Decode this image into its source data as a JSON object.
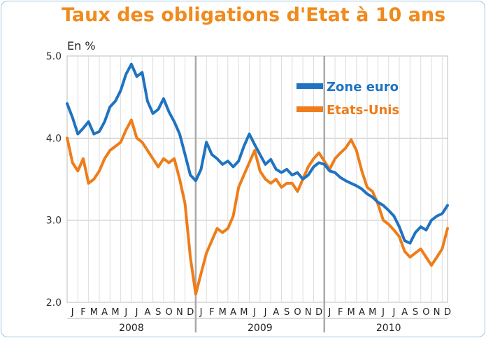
{
  "title": "Taux des obligations d'Etat à 10 ans",
  "unit_label": "En %",
  "colors": {
    "zone_euro": "#1f73c1",
    "etats_unis": "#ee7d1a",
    "title": "#f08a1d",
    "grid": "#bcbcbc"
  },
  "chart_data": {
    "type": "line",
    "title": "Taux des obligations d'Etat à 10 ans",
    "ylabel": "En %",
    "ylim": [
      2.0,
      5.0
    ],
    "yticks": [
      "2.0",
      "3.0",
      "4.0",
      "5.0"
    ],
    "x_unit": "month index (0 = janvier 2008)",
    "xlim": [
      0,
      35.5
    ],
    "month_labels": [
      "J",
      "F",
      "M",
      "A",
      "M",
      "J",
      "J",
      "A",
      "S",
      "O",
      "N",
      "D",
      "J",
      "F",
      "M",
      "A",
      "M",
      "J",
      "J",
      "A",
      "S",
      "O",
      "N",
      "D",
      "J",
      "F",
      "M",
      "A",
      "M",
      "J",
      "J",
      "A",
      "S",
      "O",
      "N",
      "D"
    ],
    "years": [
      "2008",
      "2009",
      "2010"
    ],
    "grid": true,
    "legend_position": "top-right",
    "series": [
      {
        "name": "Zone euro",
        "color": "#1f73c1",
        "x": [
          0,
          0.5,
          1,
          1.5,
          2,
          2.5,
          3,
          3.5,
          4,
          4.5,
          5,
          5.5,
          6,
          6.5,
          7,
          7.5,
          8,
          8.5,
          9,
          9.5,
          10,
          10.5,
          11,
          11.5,
          12,
          12.5,
          13,
          13.5,
          14,
          14.5,
          15,
          15.5,
          16,
          16.5,
          17,
          17.5,
          18,
          18.5,
          19,
          19.5,
          20,
          20.5,
          21,
          21.5,
          22,
          22.5,
          23,
          23.5,
          24,
          24.5,
          25,
          25.5,
          26,
          26.5,
          27,
          27.5,
          28,
          28.5,
          29,
          29.5,
          30,
          30.5,
          31,
          31.5,
          32,
          32.5,
          33,
          33.5,
          34,
          34.5,
          35,
          35.5
        ],
        "values": [
          4.42,
          4.25,
          4.05,
          4.12,
          4.2,
          4.05,
          4.08,
          4.2,
          4.38,
          4.45,
          4.58,
          4.78,
          4.9,
          4.75,
          4.8,
          4.45,
          4.3,
          4.35,
          4.48,
          4.32,
          4.2,
          4.05,
          3.8,
          3.55,
          3.48,
          3.62,
          3.95,
          3.8,
          3.75,
          3.68,
          3.72,
          3.65,
          3.72,
          3.9,
          4.05,
          3.92,
          3.8,
          3.68,
          3.74,
          3.62,
          3.58,
          3.62,
          3.55,
          3.58,
          3.5,
          3.55,
          3.65,
          3.7,
          3.68,
          3.6,
          3.58,
          3.52,
          3.48,
          3.45,
          3.42,
          3.38,
          3.32,
          3.28,
          3.22,
          3.18,
          3.12,
          3.05,
          2.92,
          2.75,
          2.72,
          2.85,
          2.92,
          2.88,
          3.0,
          3.05,
          3.08,
          3.18
        ]
      },
      {
        "name": "Etats-Unis",
        "color": "#ee7d1a",
        "x": [
          0,
          0.5,
          1,
          1.5,
          2,
          2.5,
          3,
          3.5,
          4,
          4.5,
          5,
          5.5,
          6,
          6.5,
          7,
          7.5,
          8,
          8.5,
          9,
          9.5,
          10,
          10.5,
          11,
          11.5,
          12,
          12.5,
          13,
          13.5,
          14,
          14.5,
          15,
          15.5,
          16,
          16.5,
          17,
          17.5,
          18,
          18.5,
          19,
          19.5,
          20,
          20.5,
          21,
          21.5,
          22,
          22.5,
          23,
          23.5,
          24,
          24.5,
          25,
          25.5,
          26,
          26.5,
          27,
          27.5,
          28,
          28.5,
          29,
          29.5,
          30,
          30.5,
          31,
          31.5,
          32,
          32.5,
          33,
          33.5,
          34,
          34.5,
          35,
          35.5
        ],
        "values": [
          4.0,
          3.7,
          3.6,
          3.75,
          3.45,
          3.5,
          3.6,
          3.75,
          3.85,
          3.9,
          3.95,
          4.1,
          4.22,
          4.0,
          3.95,
          3.85,
          3.75,
          3.65,
          3.75,
          3.7,
          3.75,
          3.5,
          3.2,
          2.55,
          2.1,
          2.35,
          2.6,
          2.75,
          2.9,
          2.85,
          2.9,
          3.05,
          3.4,
          3.55,
          3.7,
          3.85,
          3.6,
          3.5,
          3.45,
          3.5,
          3.4,
          3.45,
          3.45,
          3.35,
          3.5,
          3.65,
          3.75,
          3.82,
          3.72,
          3.62,
          3.75,
          3.82,
          3.88,
          3.98,
          3.85,
          3.6,
          3.4,
          3.35,
          3.2,
          3.0,
          2.95,
          2.88,
          2.8,
          2.62,
          2.55,
          2.6,
          2.65,
          2.55,
          2.45,
          2.55,
          2.65,
          2.9
        ]
      }
    ]
  }
}
